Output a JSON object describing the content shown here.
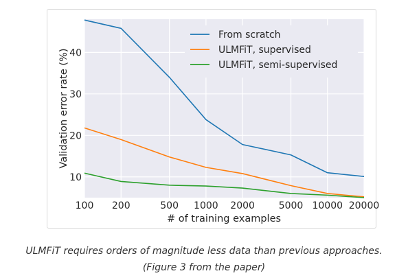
{
  "chart_data": {
    "type": "line",
    "title": "",
    "xlabel": "# of training examples",
    "ylabel": "Validation error rate (%)",
    "x": [
      100,
      200,
      500,
      1000,
      2000,
      5000,
      10000,
      20000
    ],
    "x_tick_labels": [
      "100",
      "200",
      "500",
      "1000",
      "2000",
      "5000",
      "10000",
      "20000"
    ],
    "x_scale": "log",
    "y_ticks": [
      10,
      20,
      30,
      40
    ],
    "y_tick_labels": [
      "10",
      "20",
      "30",
      "40"
    ],
    "ylim": [
      5,
      48
    ],
    "grid": true,
    "legend_position": "top-right",
    "series": [
      {
        "name": "From scratch",
        "color": "#1f77b4",
        "values": [
          47.8,
          45.8,
          34.0,
          23.8,
          17.8,
          15.3,
          11.0,
          10.1
        ]
      },
      {
        "name": "ULMFiT, supervised",
        "color": "#ff7f0e",
        "values": [
          21.8,
          19.0,
          14.8,
          12.3,
          10.8,
          7.9,
          6.0,
          5.2
        ]
      },
      {
        "name": "ULMFiT, semi-supervised",
        "color": "#2ca02c",
        "values": [
          10.9,
          8.9,
          8.0,
          7.8,
          7.3,
          6.0,
          5.6,
          5.0
        ]
      }
    ]
  },
  "caption": {
    "line1": "ULMFiT requires orders of magnitude less data than previous approaches.",
    "line2": "(Figure 3 from the paper)"
  }
}
